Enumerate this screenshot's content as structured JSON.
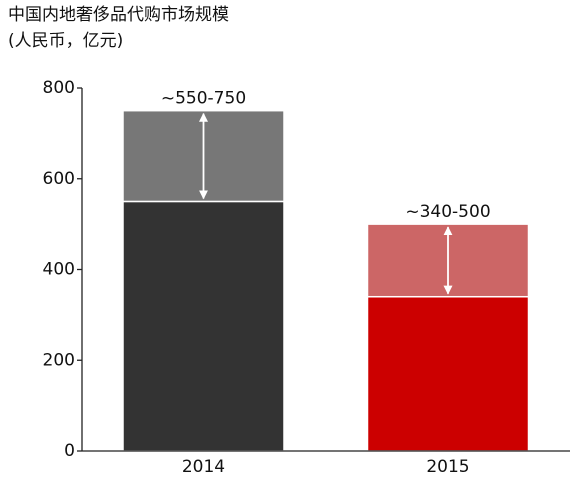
{
  "chart_data": {
    "type": "bar",
    "stacked": true,
    "title": "中国内地奢侈品代购市场规模",
    "subtitle": "(人民币，亿元)",
    "categories": [
      "2014",
      "2015"
    ],
    "series": [
      {
        "values": [
          550,
          340
        ],
        "colors": [
          "#333333",
          "#cc0000"
        ]
      },
      {
        "values": [
          200,
          160
        ],
        "colors": [
          "#777777",
          "#cc6666"
        ]
      }
    ],
    "range_labels": [
      "~550-750",
      "~340-500"
    ],
    "ylim": [
      0,
      800
    ],
    "yticks": [
      0,
      200,
      400,
      600,
      800
    ],
    "grid": false
  }
}
